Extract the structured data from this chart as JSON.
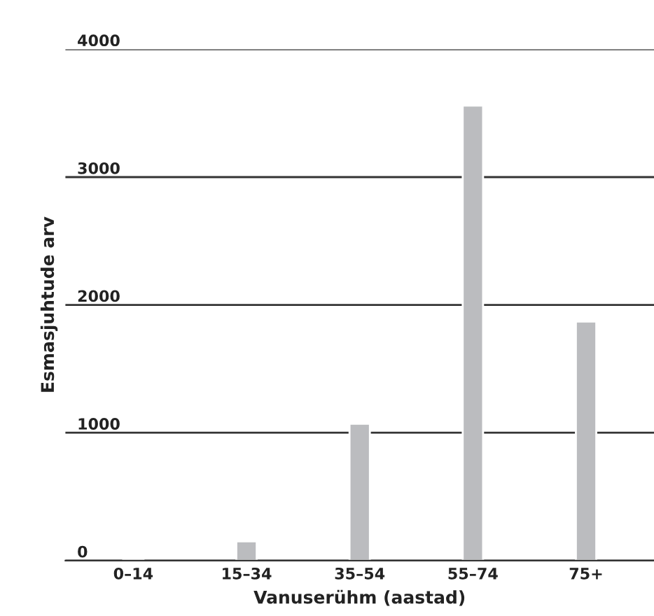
{
  "chart_data": {
    "type": "bar",
    "xlabel": "Vanuserühm (aastad)",
    "ylabel": "Esmasjuhtude arv",
    "categories": [
      "0–14",
      "15–34",
      "35–54",
      "55–74",
      "75+"
    ],
    "series": [
      {
        "color": "#bbbcbf",
        "values": [
          5,
          150,
          1070,
          3560,
          1870
        ]
      }
    ],
    "ylim": [
      0,
      4000
    ],
    "yticks": [
      0,
      1000,
      2000,
      3000,
      4000
    ],
    "grid": "y",
    "legend": false
  }
}
